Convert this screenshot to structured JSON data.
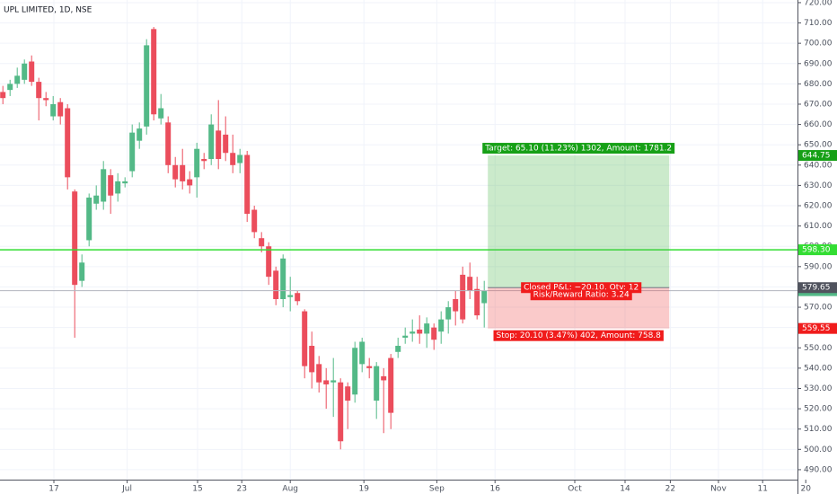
{
  "chart_data": {
    "type": "candlestick",
    "title": "UPL LIMITED, 1D, NSE",
    "up_color": "#53b987",
    "down_color": "#eb4d5c",
    "grid": true,
    "xlim": [
      -0.4,
      110.6
    ],
    "ylim": [
      485.1,
      721.3
    ],
    "xticks": [
      {
        "value": 7.1,
        "label": "17"
      },
      {
        "value": 17.3,
        "label": "Jul"
      },
      {
        "value": 27.1,
        "label": "15"
      },
      {
        "value": 33.25,
        "label": "23"
      },
      {
        "value": 40,
        "label": "Aug"
      },
      {
        "value": 50.25,
        "label": "19"
      },
      {
        "value": 60.4,
        "label": "Sep"
      },
      {
        "value": 68.5,
        "label": "16"
      },
      {
        "value": 79.6,
        "label": "Oct"
      },
      {
        "value": 86.6,
        "label": "14"
      },
      {
        "value": 92.9,
        "label": "22"
      },
      {
        "value": 99.6,
        "label": "Nov"
      },
      {
        "value": 105.75,
        "label": "11"
      },
      {
        "value": 111.75,
        "label": "20"
      }
    ],
    "yticks": [
      {
        "value": 490,
        "label": "490.00"
      },
      {
        "value": 500,
        "label": "500.00"
      },
      {
        "value": 510,
        "label": "510.00"
      },
      {
        "value": 520,
        "label": "520.00"
      },
      {
        "value": 530,
        "label": "530.00"
      },
      {
        "value": 540,
        "label": "540.00"
      },
      {
        "value": 550,
        "label": "550.00"
      },
      {
        "value": 560,
        "label": "560.00"
      },
      {
        "value": 570,
        "label": "570.00"
      },
      {
        "value": 580,
        "label": "580.00"
      },
      {
        "value": 590,
        "label": "590.00"
      },
      {
        "value": 600,
        "label": "600.00"
      },
      {
        "value": 610,
        "label": "610.00"
      },
      {
        "value": 620,
        "label": "620.00"
      },
      {
        "value": 630,
        "label": "630.00"
      },
      {
        "value": 640,
        "label": "640.00"
      },
      {
        "value": 650,
        "label": "650.00"
      },
      {
        "value": 660,
        "label": "660.00"
      },
      {
        "value": 670,
        "label": "670.00"
      },
      {
        "value": 680,
        "label": "680.00"
      },
      {
        "value": 690,
        "label": "690.00"
      },
      {
        "value": 700,
        "label": "700.00"
      },
      {
        "value": 710,
        "label": "710.00"
      },
      {
        "value": 720,
        "label": "720.00"
      }
    ],
    "open": [
      676,
      677,
      680,
      682,
      691,
      681,
      673,
      664,
      671,
      668,
      627,
      583,
      603,
      621,
      622,
      635,
      626,
      631,
      637,
      652,
      659,
      707,
      663,
      661,
      640,
      640,
      633,
      634,
      643,
      643,
      657,
      655,
      646,
      641,
      645,
      618,
      604,
      600,
      588,
      574,
      575,
      577,
      568,
      551,
      542,
      534,
      533,
      533,
      531,
      527,
      542,
      541,
      524,
      536,
      545,
      548,
      555,
      557,
      559,
      557,
      560,
      558,
      564,
      574,
      586,
      585,
      579,
      572
    ],
    "high": [
      679,
      682,
      688,
      692,
      694,
      683,
      676,
      674,
      673,
      670,
      628,
      596,
      626,
      630,
      642,
      638,
      636,
      634,
      660,
      661,
      702,
      708,
      675,
      664,
      644,
      648,
      637,
      651,
      646,
      665,
      672,
      664,
      655,
      648,
      647,
      620,
      607,
      602,
      590,
      596,
      585,
      578,
      569,
      558,
      546,
      540,
      545,
      535,
      533,
      553,
      555,
      545,
      543,
      540,
      547,
      555,
      560,
      564,
      566,
      565,
      562,
      568,
      573,
      578,
      590,
      592,
      585,
      583
    ],
    "low": [
      670,
      674,
      678,
      680,
      679,
      662,
      669,
      662,
      660,
      628,
      555,
      580,
      600,
      618,
      618,
      616,
      622,
      629,
      634,
      648,
      655,
      662,
      660,
      636,
      629,
      628,
      626,
      624,
      638,
      640,
      638,
      642,
      636,
      636,
      612,
      604,
      597,
      581,
      571,
      570,
      568,
      571,
      535,
      530,
      528,
      520,
      516,
      500,
      510,
      523,
      538,
      535,
      515,
      508,
      510,
      545,
      552,
      553,
      552,
      550,
      549,
      552,
      557,
      561,
      562,
      574,
      564,
      560
    ],
    "close": [
      673,
      680,
      684,
      690,
      681,
      673,
      672,
      670,
      664,
      634,
      581,
      592,
      624,
      625,
      638,
      625,
      632,
      632,
      656,
      658,
      699,
      665,
      668,
      640,
      633,
      632,
      630,
      648,
      642,
      660,
      643,
      646,
      640,
      645,
      616,
      607,
      600,
      585,
      574,
      594,
      576,
      573,
      541,
      538,
      533,
      532,
      534,
      504,
      524,
      550,
      553,
      540,
      541,
      534,
      518,
      551,
      556,
      558,
      557,
      562,
      554,
      564,
      570,
      568,
      564,
      578,
      566,
      578
    ],
    "hlines": [
      {
        "value": 598.3,
        "label": "598.30",
        "color": "#33dd33"
      },
      {
        "value": 578.15,
        "label": "578.15",
        "color": "#b2b5be",
        "label_color": "#53b987"
      }
    ],
    "position": {
      "start": 67.5,
      "end": 92.75,
      "entry": {
        "value": 579.65,
        "label": "579.65"
      },
      "target": {
        "value": 644.75,
        "label": "644.75"
      },
      "stop": {
        "value": 559.55,
        "label": "559.55"
      },
      "target_text": "Target: 65.10 (11.23%) 1302, Amount: 1781.2",
      "pnl_text": "Closed P&L: −20.10, Qty: 12",
      "ratio_text": "Risk/Reward Ratio: 3.24",
      "stop_text": "Stop: 20.10 (3.47%) 402, Amount: 758.8"
    }
  }
}
